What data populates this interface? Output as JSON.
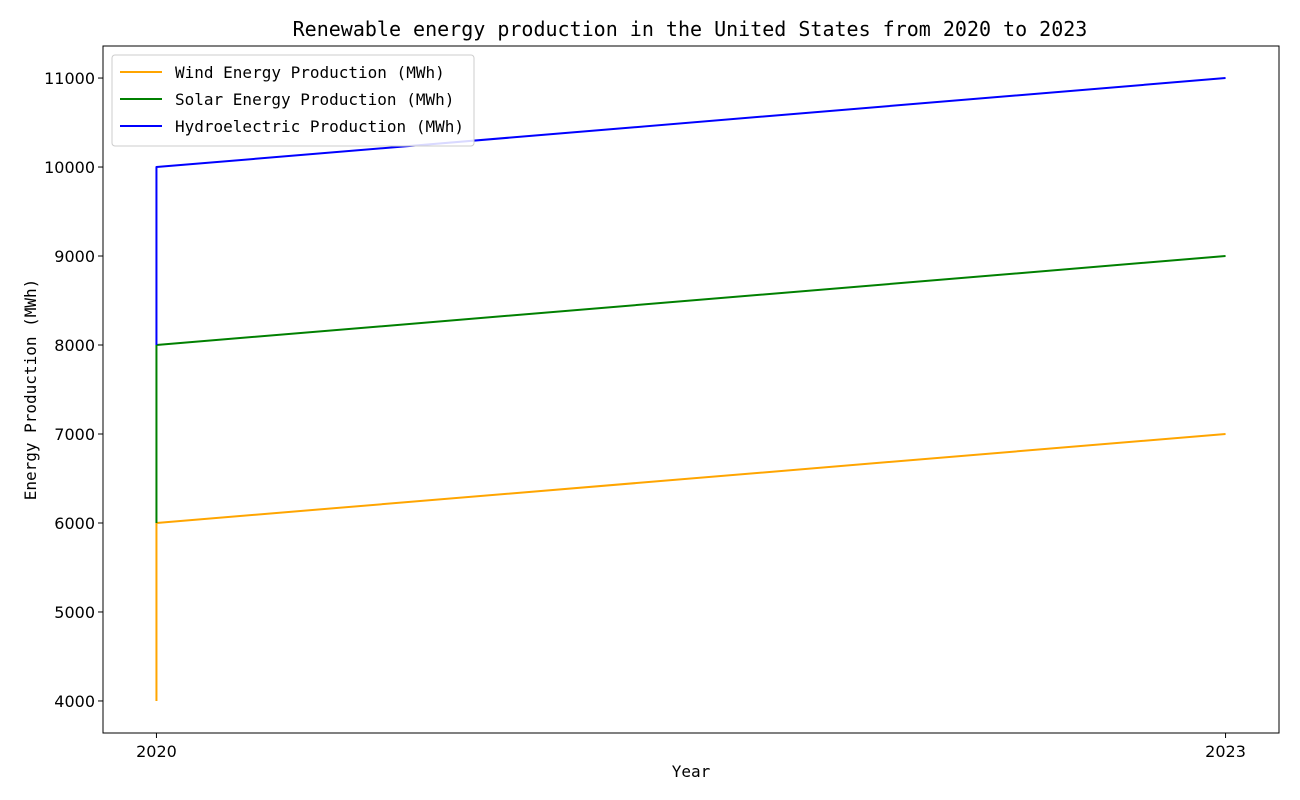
{
  "chart_data": {
    "type": "line",
    "title": "Renewable energy production in the United States from 2020 to 2023",
    "xlabel": "Year",
    "ylabel": "Energy Production (MWh)",
    "xlim": [
      2019.85,
      2023.15
    ],
    "ylim": [
      3640,
      11360
    ],
    "x_ticks": [
      "2020",
      "2023"
    ],
    "y_ticks": [
      4000,
      5000,
      6000,
      7000,
      8000,
      9000,
      10000,
      11000
    ],
    "legend_position": "top-left",
    "grid": false,
    "series": [
      {
        "name": "Wind Energy Production (MWh)",
        "color": "#FFA500",
        "points": [
          [
            2020,
            4000
          ],
          [
            2020,
            6000
          ],
          [
            2023,
            7000
          ]
        ]
      },
      {
        "name": "Solar Energy Production (MWh)",
        "color": "#008000",
        "points": [
          [
            2020,
            6000
          ],
          [
            2020,
            8000
          ],
          [
            2023,
            9000
          ]
        ]
      },
      {
        "name": "Hydroelectric Production (MWh)",
        "color": "#0000FF",
        "points": [
          [
            2020,
            8000
          ],
          [
            2020,
            10000
          ],
          [
            2023,
            11000
          ]
        ]
      }
    ]
  }
}
